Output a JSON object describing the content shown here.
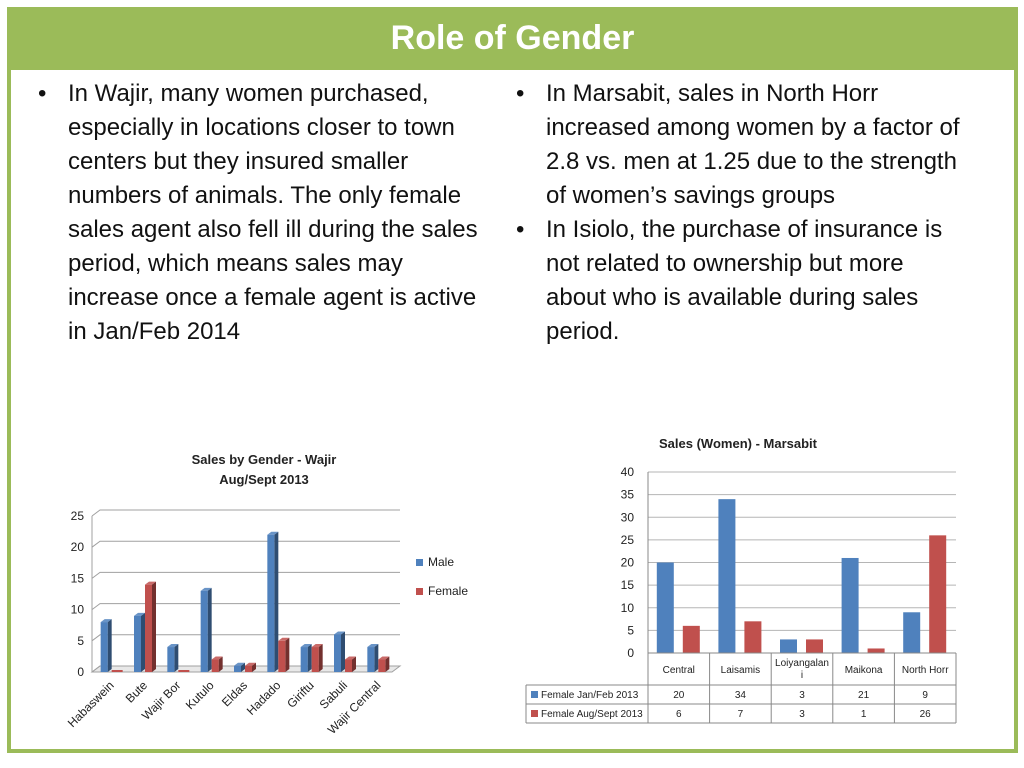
{
  "slide": {
    "title": "Role of Gender",
    "colors": {
      "accent": "#9bbb59",
      "male": "#4f81bd",
      "female": "#c0504d"
    }
  },
  "bullets_left": [
    "In Wajir, many women purchased, especially in locations closer to town centers but they insured smaller numbers of animals.  The only female sales agent also fell ill during the sales period, which means sales may increase once a female agent is active in Jan/Feb 2014"
  ],
  "bullets_right": [
    "In Marsabit, sales in North Horr increased among women by a factor of 2.8 vs. men at 1.25 due to the strength of women’s savings groups",
    "In Isiolo, the purchase of insurance is not related to ownership but more about who is available during sales period."
  ],
  "chart_data": [
    {
      "type": "bar",
      "title": "Sales by Gender - Wajir",
      "title_line2": "Aug/Sept 2013",
      "categories": [
        "Habaswein",
        "Bute",
        "Wajir Bor",
        "Kutulo",
        "Eldas",
        "Hadado",
        "Giriftu",
        "Sabuli",
        "Wajir Central"
      ],
      "series": [
        {
          "name": "Male",
          "values": [
            8,
            9,
            4,
            13,
            1,
            22,
            4,
            6,
            4
          ]
        },
        {
          "name": "Female",
          "values": [
            0,
            14,
            0,
            2,
            1,
            5,
            4,
            2,
            2
          ]
        }
      ],
      "ylim": [
        0,
        25
      ],
      "yticks": [
        0,
        5,
        10,
        15,
        20,
        25
      ],
      "legend": "right"
    },
    {
      "type": "bar",
      "title": "Sales (Women) - Marsabit",
      "categories": [
        "Central",
        "Laisamis",
        "Loiyangalani",
        "Maikona",
        "North Horr"
      ],
      "category_labels": [
        [
          "Central"
        ],
        [
          "Laisamis"
        ],
        [
          "Loiyangalan",
          "i"
        ],
        [
          "Maikona"
        ],
        [
          "North Horr"
        ]
      ],
      "series": [
        {
          "name": "Female Jan/Feb 2013",
          "values": [
            20,
            34,
            3,
            21,
            9
          ]
        },
        {
          "name": "Female Aug/Sept 2013",
          "values": [
            6,
            7,
            3,
            1,
            26
          ]
        }
      ],
      "ylim": [
        0,
        40
      ],
      "yticks": [
        0,
        5,
        10,
        15,
        20,
        25,
        30,
        35,
        40
      ],
      "legend": "data-table"
    }
  ]
}
